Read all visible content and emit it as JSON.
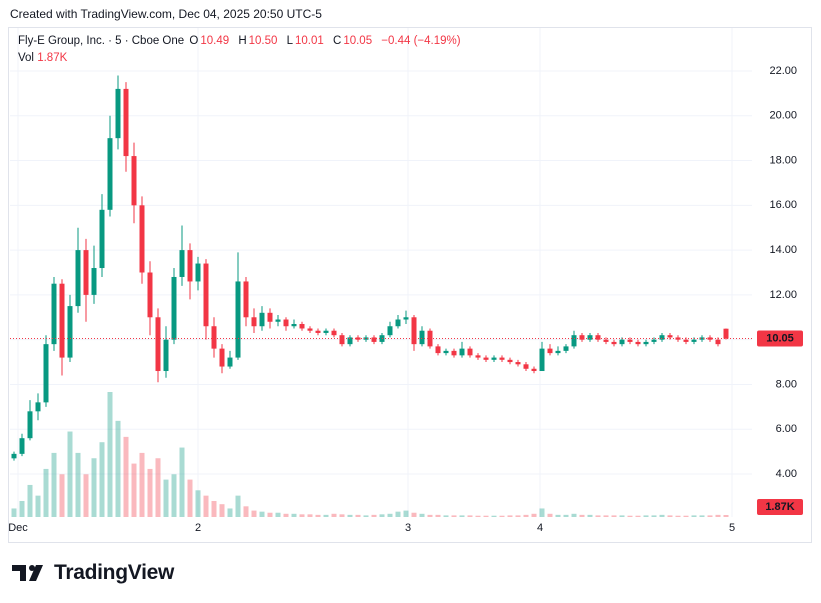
{
  "header": "Created with TradingView.com, Dec 04, 2025 20:50 UTC-5",
  "brand": "TradingView",
  "chart_data": {
    "type": "candlestick",
    "symbol": "Fly-E Group, Inc. · 5 · Cboe One",
    "ohlc": [
      {
        "key": "O",
        "value": "10.49"
      },
      {
        "key": "H",
        "value": "10.50"
      },
      {
        "key": "L",
        "value": "10.01"
      },
      {
        "key": "C",
        "value": "10.05"
      }
    ],
    "change": "−0.44 (−4.19%)",
    "vol_key": "Vol",
    "vol_value": "1.87K",
    "x": [
      0,
      1,
      2,
      3,
      4,
      5,
      6,
      7,
      8,
      9,
      10,
      11,
      12,
      13,
      14,
      15,
      16,
      17,
      18,
      19,
      20,
      21,
      22,
      23,
      24,
      25,
      26,
      27,
      28,
      29,
      30,
      31,
      32,
      33,
      34,
      35,
      36,
      37,
      38,
      39,
      40,
      41,
      42,
      43,
      44,
      45,
      46,
      47,
      48,
      49,
      50,
      51,
      52,
      53,
      54,
      55,
      56,
      57,
      58,
      59,
      60,
      61,
      62,
      63,
      64,
      65,
      66,
      67,
      68,
      69,
      70,
      71,
      72,
      73,
      74,
      75,
      76,
      77,
      78,
      79,
      80,
      81,
      82,
      83,
      84,
      85,
      86,
      87,
      88,
      89
    ],
    "open": [
      4.7,
      4.9,
      5.6,
      6.8,
      7.2,
      9.8,
      12.5,
      9.2,
      11.5,
      14.0,
      12.0,
      13.2,
      15.8,
      19.0,
      21.2,
      18.2,
      16.0,
      13.0,
      11.0,
      8.6,
      10.0,
      12.8,
      14.0,
      12.6,
      13.4,
      10.6,
      9.6,
      8.8,
      9.2,
      12.6,
      11.0,
      10.6,
      11.2,
      10.8,
      10.9,
      10.6,
      10.7,
      10.5,
      10.4,
      10.3,
      10.4,
      10.2,
      9.8,
      10.1,
      10.0,
      10.1,
      9.9,
      10.2,
      10.6,
      10.9,
      11.0,
      9.8,
      10.4,
      9.7,
      9.4,
      9.5,
      9.3,
      9.6,
      9.3,
      9.2,
      9.1,
      9.2,
      9.1,
      9.0,
      8.9,
      8.7,
      8.6,
      9.6,
      9.4,
      9.5,
      9.7,
      10.2,
      10.0,
      10.2,
      10.0,
      9.9,
      9.8,
      10.0,
      9.9,
      9.8,
      9.9,
      10.0,
      10.2,
      10.1,
      10.0,
      9.9,
      10.0,
      10.1,
      10.0,
      10.49
    ],
    "high": [
      5.0,
      5.8,
      7.3,
      7.6,
      10.2,
      12.8,
      12.7,
      12.0,
      15.0,
      14.5,
      14.2,
      16.5,
      20.0,
      21.8,
      21.5,
      18.8,
      16.4,
      13.5,
      11.4,
      10.6,
      13.2,
      15.1,
      14.3,
      13.7,
      13.6,
      11.0,
      9.8,
      9.5,
      13.9,
      12.8,
      11.4,
      11.5,
      11.4,
      11.1,
      11.0,
      10.9,
      10.8,
      10.6,
      10.5,
      10.5,
      10.5,
      10.3,
      10.2,
      10.2,
      10.2,
      10.2,
      10.3,
      10.8,
      11.1,
      11.3,
      11.1,
      10.6,
      10.5,
      9.8,
      9.6,
      9.6,
      9.9,
      9.7,
      9.4,
      9.3,
      9.3,
      9.3,
      9.2,
      9.1,
      9.0,
      8.8,
      9.9,
      9.8,
      9.7,
      9.8,
      10.4,
      10.3,
      10.3,
      10.3,
      10.1,
      10.0,
      10.1,
      10.1,
      10.0,
      10.0,
      10.1,
      10.3,
      10.3,
      10.2,
      10.1,
      10.1,
      10.2,
      10.2,
      10.1,
      10.5
    ],
    "low": [
      4.6,
      4.8,
      5.5,
      6.4,
      7.0,
      9.5,
      8.4,
      9.0,
      11.2,
      10.8,
      11.6,
      12.8,
      15.5,
      18.5,
      17.5,
      15.2,
      12.5,
      10.2,
      8.1,
      8.3,
      9.8,
      12.4,
      11.8,
      12.2,
      10.0,
      9.2,
      8.5,
      8.7,
      9.1,
      10.6,
      10.3,
      10.4,
      10.5,
      10.6,
      10.4,
      10.5,
      10.4,
      10.3,
      10.2,
      10.2,
      10.1,
      9.7,
      9.7,
      9.9,
      9.9,
      9.8,
      9.8,
      10.1,
      10.5,
      10.7,
      9.5,
      9.7,
      9.6,
      9.3,
      9.3,
      9.2,
      9.2,
      9.2,
      9.1,
      9.0,
      9.0,
      9.0,
      8.9,
      8.8,
      8.6,
      8.5,
      8.6,
      9.3,
      9.3,
      9.4,
      9.6,
      9.9,
      9.9,
      9.9,
      9.8,
      9.7,
      9.7,
      9.8,
      9.7,
      9.7,
      9.8,
      9.9,
      10.0,
      9.9,
      9.8,
      9.8,
      9.9,
      9.9,
      9.7,
      10.01
    ],
    "close": [
      4.9,
      5.6,
      6.8,
      7.2,
      9.8,
      12.5,
      9.2,
      11.5,
      14.0,
      12.0,
      13.2,
      15.8,
      19.0,
      21.2,
      18.2,
      16.0,
      13.0,
      11.0,
      8.6,
      10.0,
      12.8,
      14.0,
      12.6,
      13.4,
      10.6,
      9.6,
      8.8,
      9.2,
      12.6,
      11.0,
      10.6,
      11.2,
      10.8,
      10.9,
      10.6,
      10.7,
      10.5,
      10.4,
      10.3,
      10.4,
      10.2,
      9.8,
      10.1,
      10.0,
      10.1,
      9.9,
      10.2,
      10.6,
      10.9,
      11.0,
      9.8,
      10.4,
      9.7,
      9.4,
      9.5,
      9.3,
      9.6,
      9.3,
      9.2,
      9.1,
      9.2,
      9.1,
      9.0,
      8.9,
      8.7,
      8.6,
      9.6,
      9.4,
      9.5,
      9.7,
      10.2,
      10.0,
      10.2,
      10.0,
      9.9,
      9.8,
      10.0,
      9.9,
      9.8,
      9.9,
      10.0,
      10.2,
      10.1,
      10.0,
      9.9,
      10.0,
      10.1,
      10.0,
      9.8,
      10.05
    ],
    "volume": [
      8000,
      15000,
      30000,
      20000,
      45000,
      60000,
      40000,
      80000,
      60000,
      40000,
      55000,
      70000,
      117000,
      90000,
      75000,
      50000,
      60000,
      45000,
      55000,
      35000,
      40000,
      65000,
      35000,
      25000,
      20000,
      15000,
      12000,
      8000,
      20000,
      10000,
      6000,
      5000,
      4000,
      4000,
      3000,
      3000,
      2500,
      2500,
      2000,
      2000,
      3000,
      2500,
      2000,
      2000,
      1500,
      2000,
      2500,
      3000,
      5000,
      6000,
      4000,
      3000,
      2000,
      2000,
      1500,
      1500,
      1500,
      1500,
      1200,
      1200,
      1200,
      1200,
      1500,
      1500,
      2000,
      3000,
      8000,
      3000,
      2000,
      2000,
      3000,
      2000,
      2000,
      1500,
      1500,
      1500,
      1500,
      1200,
      1200,
      1500,
      1500,
      2000,
      1500,
      1200,
      1200,
      1500,
      1500,
      1500,
      2000,
      1870
    ],
    "xlim": [
      -0.5,
      92.25
    ],
    "xticks": [
      {
        "value": 0.5,
        "label": "Dec"
      },
      {
        "value": 23,
        "label": "2"
      },
      {
        "value": 49.25,
        "label": "3"
      },
      {
        "value": 65.75,
        "label": "4"
      },
      {
        "value": 89.75,
        "label": "5"
      }
    ],
    "ylim": [
      2.08,
      23.92
    ],
    "yticks": [
      {
        "value": 4,
        "label": "4.00"
      },
      {
        "value": 6,
        "label": "6.00"
      },
      {
        "value": 8,
        "label": "8.00"
      },
      {
        "value": 10,
        "label": "10.00"
      },
      {
        "value": 12,
        "label": "12.00"
      },
      {
        "value": 14,
        "label": "14.00"
      },
      {
        "value": 16,
        "label": "16.00"
      },
      {
        "value": 18,
        "label": "18.00"
      },
      {
        "value": 20,
        "label": "20.00"
      },
      {
        "value": 22,
        "label": "22.00"
      }
    ],
    "grid": true,
    "up_color": "#089981",
    "down_color": "#f23645"
  }
}
